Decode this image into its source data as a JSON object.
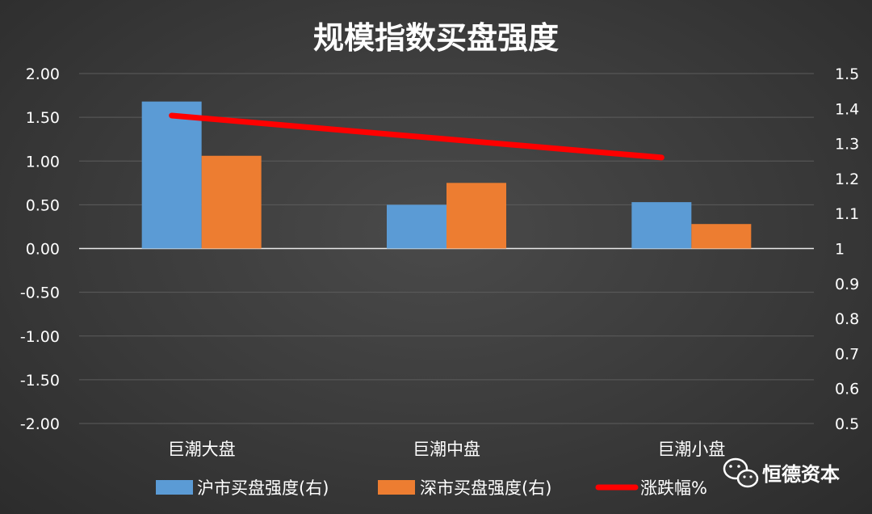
{
  "chart_data": {
    "type": "bar",
    "title": "规模指数买盘强度",
    "categories": [
      "巨潮大盘",
      "巨潮中盘",
      "巨潮小盘"
    ],
    "series": [
      {
        "name": "沪市买盘强度(右)",
        "type": "bar",
        "axis": "left",
        "color": "#5b9bd5",
        "values": [
          1.68,
          0.5,
          0.53
        ]
      },
      {
        "name": "深市买盘强度(右)",
        "type": "bar",
        "axis": "left",
        "color": "#ed7d31",
        "values": [
          1.06,
          0.75,
          0.28
        ]
      },
      {
        "name": "涨跌幅%",
        "type": "line",
        "axis": "right",
        "color": "#ff0000",
        "values": [
          1.38,
          null,
          1.26
        ]
      }
    ],
    "y_left": {
      "lim": [
        -2.0,
        2.0
      ],
      "ticks": [
        "2.00",
        "1.50",
        "1.00",
        "0.50",
        "0.00",
        "-0.50",
        "-1.00",
        "-1.50",
        "-2.00"
      ]
    },
    "y_right": {
      "lim": [
        0.5,
        1.5
      ],
      "ticks": [
        "1.5",
        "1.4",
        "1.3",
        "1.2",
        "1.1",
        "1",
        "0.9",
        "0.8",
        "0.7",
        "0.6",
        "0.5"
      ]
    },
    "grid": true,
    "legend_position": "bottom"
  },
  "watermark": {
    "text": "恒德资本",
    "icon": "wechat-icon"
  }
}
